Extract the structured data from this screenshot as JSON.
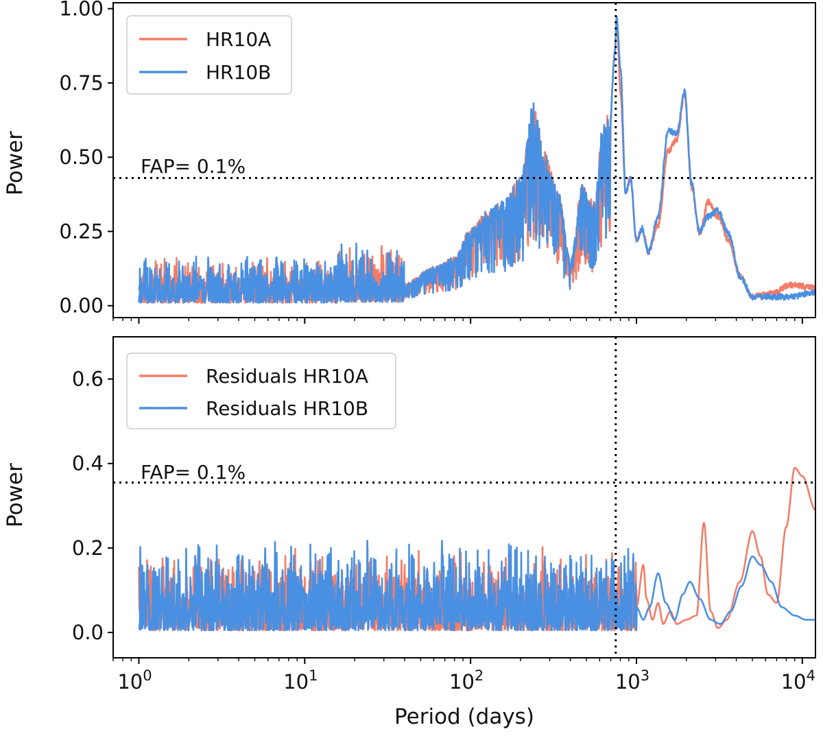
{
  "chart_data": [
    {
      "type": "line",
      "panel": "top",
      "xscale": "log",
      "xlim": [
        0.7,
        12000
      ],
      "ylim": [
        -0.04,
        1.02
      ],
      "ylabel": "Power",
      "xlabel": "",
      "yticks": [
        "0.00",
        "0.25",
        "0.50",
        "0.75",
        "1.00"
      ],
      "ytick_values": [
        0,
        0.25,
        0.5,
        0.75,
        1.0
      ],
      "legend": {
        "placement": "top-left",
        "entries": [
          "HR10A",
          "HR10B"
        ]
      },
      "fap": {
        "label": "FAP= 0.1%",
        "level": 0.43
      },
      "vline_period": 750,
      "series": [
        {
          "name": "HR10A",
          "color": "#f47c68",
          "seed": 11,
          "noise_max": 0.16,
          "smooth_points": [
            [
              40,
              0.07
            ],
            [
              60,
              0.12
            ],
            [
              80,
              0.15
            ],
            [
              100,
              0.24
            ],
            [
              130,
              0.3
            ],
            [
              160,
              0.33
            ],
            [
              200,
              0.4
            ],
            [
              240,
              0.62
            ],
            [
              280,
              0.48
            ],
            [
              340,
              0.35
            ],
            [
              400,
              0.14
            ],
            [
              470,
              0.38
            ],
            [
              560,
              0.32
            ],
            [
              620,
              0.55
            ],
            [
              690,
              0.6
            ],
            [
              740,
              0.85
            ],
            [
              760,
              0.96
            ],
            [
              800,
              0.72
            ],
            [
              860,
              0.38
            ],
            [
              920,
              0.43
            ],
            [
              1000,
              0.22
            ],
            [
              1080,
              0.26
            ],
            [
              1180,
              0.18
            ],
            [
              1350,
              0.27
            ],
            [
              1550,
              0.52
            ],
            [
              1750,
              0.56
            ],
            [
              1950,
              0.71
            ],
            [
              2150,
              0.4
            ],
            [
              2400,
              0.24
            ],
            [
              2700,
              0.35
            ],
            [
              3100,
              0.3
            ],
            [
              3600,
              0.22
            ],
            [
              4200,
              0.1
            ],
            [
              5000,
              0.03
            ],
            [
              6500,
              0.04
            ],
            [
              8500,
              0.07
            ],
            [
              12000,
              0.06
            ]
          ]
        },
        {
          "name": "HR10B",
          "color": "#4a90e2",
          "seed": 23,
          "noise_max": 0.17,
          "smooth_points": [
            [
              40,
              0.07
            ],
            [
              60,
              0.12
            ],
            [
              80,
              0.15
            ],
            [
              100,
              0.24
            ],
            [
              130,
              0.3
            ],
            [
              160,
              0.33
            ],
            [
              200,
              0.4
            ],
            [
              240,
              0.63
            ],
            [
              280,
              0.48
            ],
            [
              340,
              0.35
            ],
            [
              400,
              0.14
            ],
            [
              470,
              0.38
            ],
            [
              560,
              0.32
            ],
            [
              620,
              0.55
            ],
            [
              690,
              0.6
            ],
            [
              740,
              0.85
            ],
            [
              760,
              0.97
            ],
            [
              800,
              0.8
            ],
            [
              860,
              0.38
            ],
            [
              920,
              0.43
            ],
            [
              1000,
              0.22
            ],
            [
              1080,
              0.26
            ],
            [
              1180,
              0.18
            ],
            [
              1350,
              0.3
            ],
            [
              1550,
              0.59
            ],
            [
              1750,
              0.58
            ],
            [
              1950,
              0.72
            ],
            [
              2150,
              0.41
            ],
            [
              2400,
              0.25
            ],
            [
              2700,
              0.3
            ],
            [
              3100,
              0.32
            ],
            [
              3600,
              0.24
            ],
            [
              4200,
              0.1
            ],
            [
              5000,
              0.03
            ],
            [
              6500,
              0.03
            ],
            [
              8500,
              0.03
            ],
            [
              12000,
              0.045
            ]
          ]
        }
      ]
    },
    {
      "type": "line",
      "panel": "bottom",
      "xscale": "log",
      "xlim": [
        0.7,
        12000
      ],
      "ylim": [
        -0.06,
        0.7
      ],
      "ylabel": "Power",
      "xlabel": "Period (days)",
      "yticks": [
        "0.0",
        "0.2",
        "0.4",
        "0.6"
      ],
      "ytick_values": [
        0,
        0.2,
        0.4,
        0.6
      ],
      "xticks": [
        {
          "base": "10",
          "exp": "0",
          "value": 1
        },
        {
          "base": "10",
          "exp": "1",
          "value": 10
        },
        {
          "base": "10",
          "exp": "2",
          "value": 100
        },
        {
          "base": "10",
          "exp": "3",
          "value": 1000
        },
        {
          "base": "10",
          "exp": "4",
          "value": 10000
        }
      ],
      "legend": {
        "placement": "top-left",
        "entries": [
          "Residuals HR10A",
          "Residuals HR10B"
        ]
      },
      "fap": {
        "label": "FAP= 0.1%",
        "level": 0.355
      },
      "vline_period": 750,
      "series": [
        {
          "name": "Residuals HR10A",
          "color": "#f47c68",
          "seed": 37,
          "noise_max": 0.2,
          "smooth_points": [
            [
              1000,
              0.06
            ],
            [
              1100,
              0.16
            ],
            [
              1150,
              0.08
            ],
            [
              1250,
              0.03
            ],
            [
              1350,
              0.07
            ],
            [
              1450,
              0.02
            ],
            [
              1600,
              0.05
            ],
            [
              1750,
              0.02
            ],
            [
              2000,
              0.03
            ],
            [
              2300,
              0.04
            ],
            [
              2550,
              0.26
            ],
            [
              2800,
              0.05
            ],
            [
              3100,
              0.01
            ],
            [
              3500,
              0.03
            ],
            [
              4200,
              0.12
            ],
            [
              5000,
              0.24
            ],
            [
              5600,
              0.18
            ],
            [
              6200,
              0.09
            ],
            [
              7000,
              0.07
            ],
            [
              8000,
              0.25
            ],
            [
              9000,
              0.39
            ],
            [
              10000,
              0.37
            ],
            [
              12000,
              0.29
            ]
          ]
        },
        {
          "name": "Residuals HR10B",
          "color": "#4a90e2",
          "seed": 51,
          "noise_max": 0.22,
          "smooth_points": [
            [
              1000,
              0.06
            ],
            [
              1100,
              0.03
            ],
            [
              1200,
              0.06
            ],
            [
              1350,
              0.14
            ],
            [
              1500,
              0.07
            ],
            [
              1700,
              0.03
            ],
            [
              1900,
              0.09
            ],
            [
              2100,
              0.12
            ],
            [
              2400,
              0.08
            ],
            [
              2800,
              0.03
            ],
            [
              3200,
              0.02
            ],
            [
              3700,
              0.05
            ],
            [
              4300,
              0.11
            ],
            [
              5000,
              0.18
            ],
            [
              5600,
              0.16
            ],
            [
              6500,
              0.12
            ],
            [
              7500,
              0.06
            ],
            [
              9000,
              0.04
            ],
            [
              10500,
              0.03
            ],
            [
              12000,
              0.03
            ]
          ]
        }
      ]
    }
  ]
}
